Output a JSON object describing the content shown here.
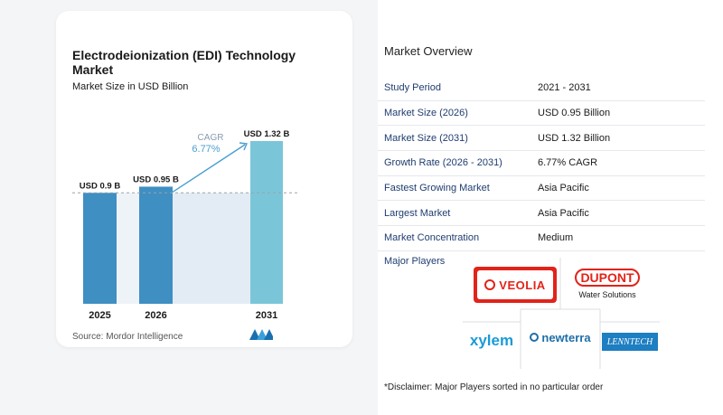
{
  "chart": {
    "title": "Electrodeionization (EDI) Technology Market",
    "subtitle": "Market Size in USD Billion",
    "cagr_label": "CAGR",
    "cagr_value": "6.77%",
    "source": "Source:  Mordor Intelligence",
    "colors": {
      "bar": "#3f8fc2",
      "bar_last": "#7ac6d8",
      "shade": "#e3ecf5",
      "arrow": "#4a9fd0",
      "cagr_text": "#4a9fd0"
    }
  },
  "chart_data": {
    "type": "bar",
    "title": "Electrodeionization (EDI) Technology Market",
    "subtitle": "Market Size in USD Billion",
    "categories": [
      "2025",
      "2026",
      "2031"
    ],
    "values": [
      0.9,
      0.95,
      1.32
    ],
    "data_labels": [
      "USD 0.9 B",
      "USD 0.95 B",
      "USD 1.32 B"
    ],
    "reference_line": 0.9,
    "annotation": "CAGR 6.77%",
    "ylim": [
      0,
      1.32
    ],
    "grid": false,
    "legend": "none"
  },
  "overview": {
    "title": "Market Overview",
    "rows": [
      {
        "label": "Study Period",
        "value": "2021 - 2031"
      },
      {
        "label": "Market Size (2026)",
        "value": "USD 0.95 Billion"
      },
      {
        "label": "Market Size (2031)",
        "value": "USD 1.32 Billion"
      },
      {
        "label": "Growth Rate (2026 - 2031)",
        "value": "6.77% CAGR"
      },
      {
        "label": "Fastest Growing Market",
        "value": "Asia Pacific"
      },
      {
        "label": "Largest Market",
        "value": "Asia Pacific"
      },
      {
        "label": "Market Concentration",
        "value": "Medium"
      }
    ]
  },
  "players": {
    "title": "Major Players",
    "logos": {
      "veolia": "VEOLIA",
      "dupont": "DUPONT",
      "dupont_sub": "Water Solutions",
      "xylem": "xylem",
      "newterra": "newterra",
      "lenntech": "LENNTECH"
    }
  },
  "disclaimer": "*Disclaimer: Major Players sorted in no particular order"
}
